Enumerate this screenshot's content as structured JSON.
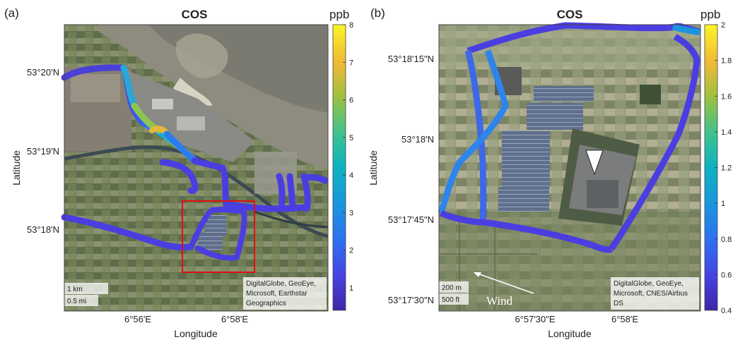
{
  "chart_data": [
    {
      "type": "scatter",
      "panel_label": "(a)",
      "title": "COS",
      "xlabel": "Longitude",
      "ylabel": "Latitude",
      "x_ticks": [
        {
          "label": "6°56'E"
        },
        {
          "label": "6°58'E"
        }
      ],
      "y_ticks": [
        {
          "label": "53°20'N"
        },
        {
          "label": "53°19'N"
        },
        {
          "label": "53°18'N"
        }
      ],
      "colorbar": {
        "unit": "ppb",
        "range": [
          0.4,
          8
        ],
        "ticks": [
          "1",
          "2",
          "3",
          "4",
          "5",
          "6",
          "7",
          "8"
        ]
      },
      "scale_bar": [
        "1 km",
        "0.5 mi"
      ],
      "attribution": [
        "DigitalGlobe, GeoEye,",
        "Microsoft, Earthstar",
        "Geographics"
      ],
      "highlight": "red box marking the area shown in panel (b)",
      "track_colors_note": "mostly 0.5–1 ppb, elevated 3–6 ppb near the harbour"
    },
    {
      "type": "scatter",
      "panel_label": "(b)",
      "title": "COS",
      "xlabel": "Longitude",
      "ylabel": "Latitude",
      "x_ticks": [
        {
          "label": "6°57'30\"E"
        },
        {
          "label": "6°58'E"
        }
      ],
      "y_ticks": [
        {
          "label": "53°18'15\"N"
        },
        {
          "label": "53°18'N"
        },
        {
          "label": "53°17'45\"N"
        },
        {
          "label": "53°17'30\"N"
        }
      ],
      "colorbar": {
        "unit": "ppb",
        "range": [
          0.4,
          2
        ],
        "ticks": [
          "0.4",
          "0.6",
          "0.8",
          "1",
          "1.2",
          "1.4",
          "1.6",
          "1.8",
          "2"
        ]
      },
      "scale_bar": [
        "200 m",
        "500 ft"
      ],
      "attribution": [
        "DigitalGlobe, GeoEye,",
        "Microsoft, CNES/Airbus",
        "DS"
      ],
      "wind_label": "Wind",
      "source_marker": "white triangle",
      "track_colors_note": "mostly 0.5–0.7 ppb, up to ~1 ppb on western leg"
    }
  ]
}
